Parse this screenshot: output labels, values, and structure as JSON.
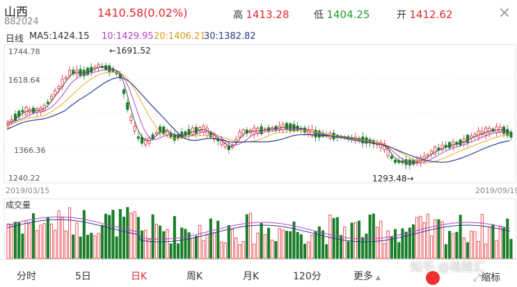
{
  "header": {
    "name": "山西",
    "code": "882024",
    "price": "1410.58",
    "change_pct": "(0.02%)",
    "high_label": "高",
    "high": "1413.28",
    "low_label": "低",
    "low": "1404.25",
    "open_label": "开",
    "open": "1412.62",
    "close_icon": "×"
  },
  "ma_bar": {
    "period": "日线",
    "ma5": "MA5:1424.15",
    "ma10": "10:1429.95",
    "ma20": "20:1406.21",
    "ma30": "30:1382.82"
  },
  "price_axis": {
    "labels": [
      "1744.78",
      "1618.64",
      "1366.36",
      "1240.22"
    ],
    "max_annotation": "←1691.52",
    "min_annotation": "1293.48→",
    "start_date": "2019/03/15",
    "end_date": "2019/09/19"
  },
  "volume_title": "成交量",
  "tabs": [
    "分时",
    "5日",
    "日K",
    "周K",
    "月K",
    "120分",
    "更多"
  ],
  "active_tab": "日K",
  "more_icon": "▲",
  "watermark": "知乎 @格隆汇",
  "zoom_label": "缩标",
  "colors": {
    "up": "#e5262d",
    "down": "#1b7f2a",
    "ma5": "#4d4d4d",
    "ma10": "#b640c8",
    "ma20": "#e9a825",
    "ma30": "#2b3a8c"
  }
}
